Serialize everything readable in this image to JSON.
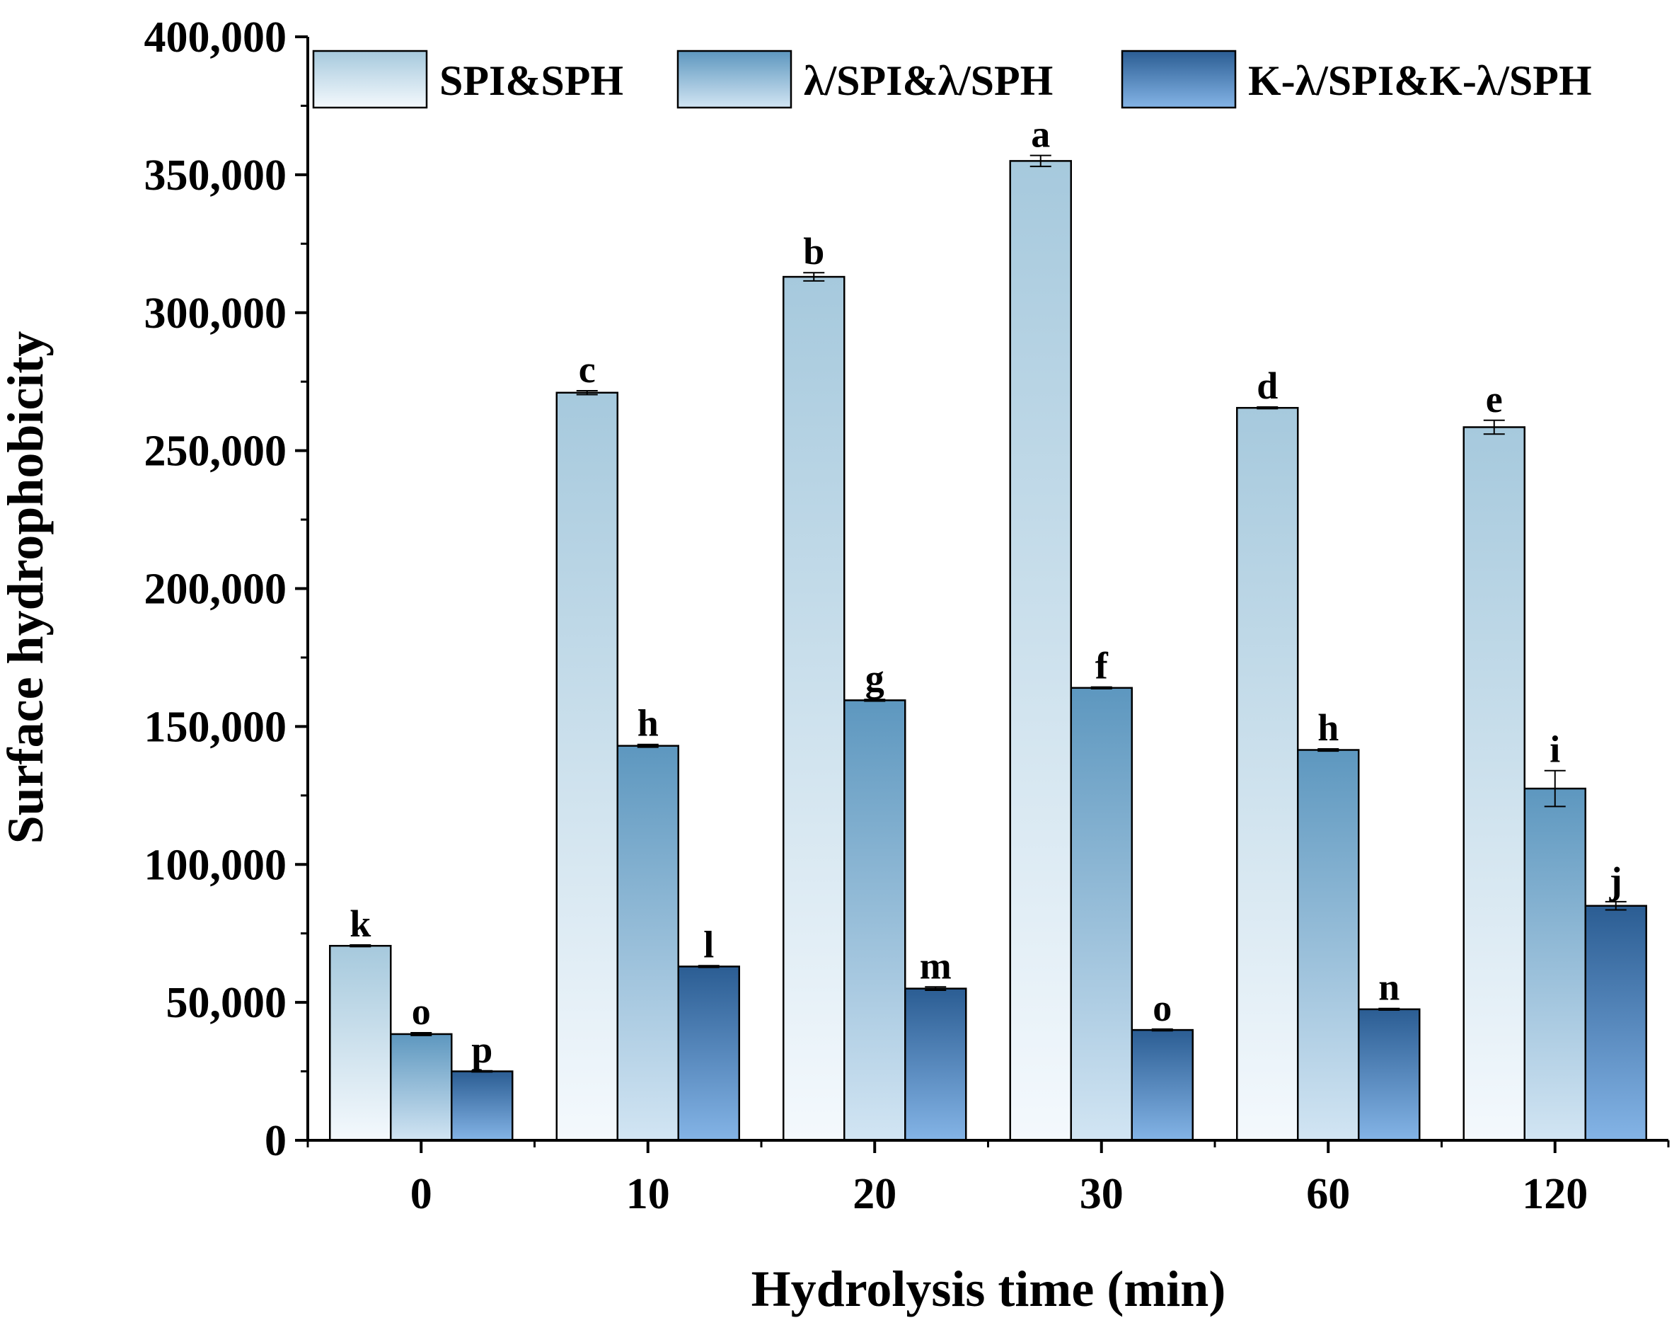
{
  "chart_data": {
    "type": "bar",
    "title": "",
    "xlabel": "Hydrolysis time (min)",
    "ylabel": "Surface hydrophobicity",
    "categories": [
      "0",
      "10",
      "20",
      "30",
      "60",
      "120"
    ],
    "ylim": [
      0,
      400000
    ],
    "yticks": [
      0,
      50000,
      100000,
      150000,
      200000,
      250000,
      300000,
      350000,
      400000
    ],
    "ytick_labels": [
      "0",
      "50,000",
      "100,000",
      "150,000",
      "200,000",
      "250,000",
      "300,000",
      "350,000",
      "400,000"
    ],
    "legend_position": "top",
    "series": [
      {
        "name": "SPI&SPH",
        "values": [
          70500,
          271000,
          313000,
          355000,
          265500,
          258500
        ],
        "errors": [
          300,
          700,
          1500,
          2000,
          300,
          2500
        ],
        "letters": [
          "k",
          "c",
          "b",
          "a",
          "d",
          "e"
        ],
        "gradient": [
          "#f4f9fd",
          "#a6c9dd"
        ]
      },
      {
        "name": "λ/SPI&λ/SPH",
        "values": [
          38500,
          143000,
          159500,
          164000,
          141500,
          127500
        ],
        "errors": [
          500,
          500,
          300,
          300,
          400,
          6500
        ],
        "letters": [
          "o",
          "h",
          "g",
          "f",
          "h",
          "i"
        ],
        "gradient": [
          "#d2e5f3",
          "#5d97bf"
        ]
      },
      {
        "name": "K-λ/SPI&K-λ/SPH",
        "values": [
          25000,
          63000,
          55000,
          40000,
          47500,
          85000
        ],
        "errors": [
          200,
          300,
          600,
          300,
          300,
          1500
        ],
        "letters": [
          "p",
          "l",
          "m",
          "o",
          "n",
          "j"
        ],
        "gradient": [
          "#84b4e6",
          "#2b5d93"
        ]
      }
    ]
  }
}
